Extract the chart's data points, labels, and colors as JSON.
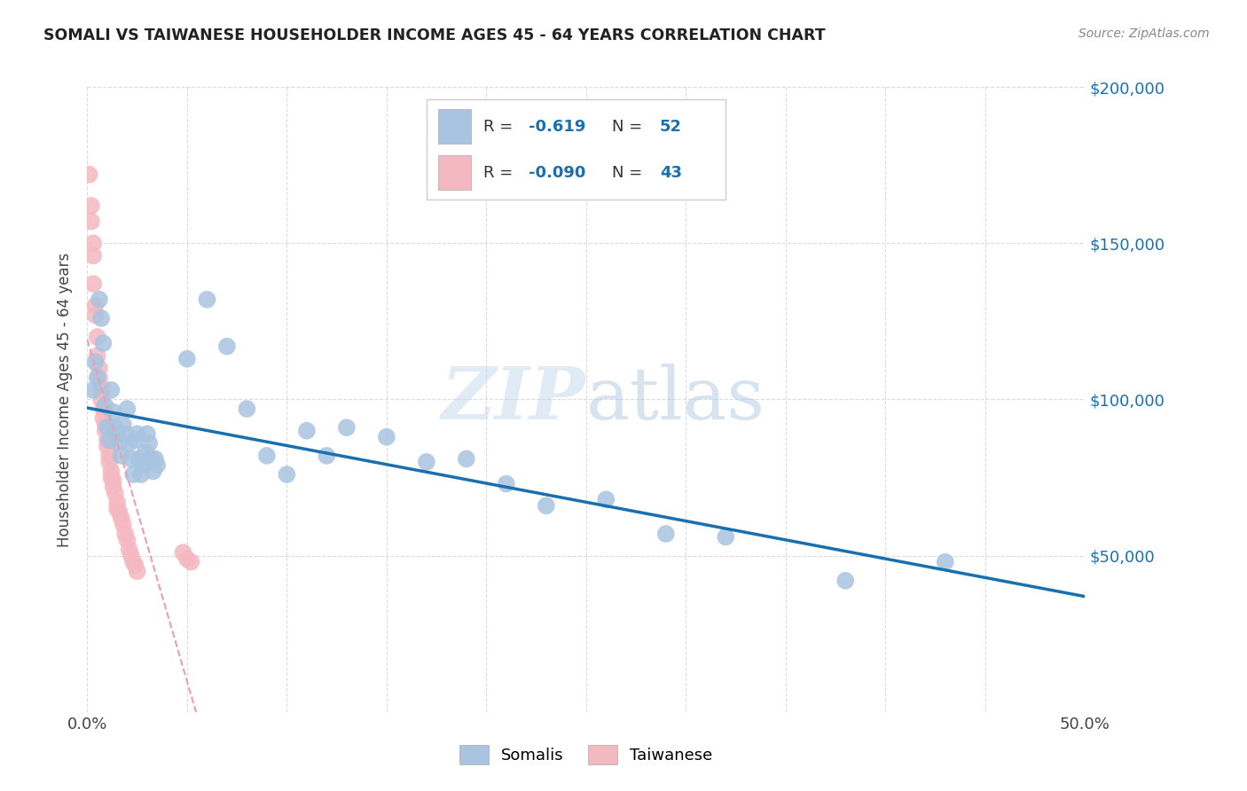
{
  "title": "SOMALI VS TAIWANESE HOUSEHOLDER INCOME AGES 45 - 64 YEARS CORRELATION CHART",
  "source": "Source: ZipAtlas.com",
  "ylabel": "Householder Income Ages 45 - 64 years",
  "watermark": "ZIPatlas",
  "somali_r": -0.619,
  "somali_n": 52,
  "taiwanese_r": -0.09,
  "taiwanese_n": 43,
  "xlim": [
    0.0,
    0.5
  ],
  "ylim": [
    0,
    200000
  ],
  "somali_color": "#a8c4e0",
  "taiwanese_color": "#f4b8c1",
  "somali_line_color": "#1a6faf",
  "taiwanese_line_color": "#e8a0b0",
  "background_color": "#ffffff",
  "grid_color": "#cccccc",
  "somali_x": [
    0.003,
    0.004,
    0.005,
    0.006,
    0.007,
    0.008,
    0.009,
    0.01,
    0.011,
    0.012,
    0.013,
    0.014,
    0.015,
    0.016,
    0.017,
    0.018,
    0.019,
    0.02,
    0.021,
    0.022,
    0.023,
    0.024,
    0.025,
    0.026,
    0.027,
    0.028,
    0.029,
    0.03,
    0.031,
    0.032,
    0.033,
    0.034,
    0.035,
    0.05,
    0.06,
    0.07,
    0.08,
    0.09,
    0.1,
    0.11,
    0.12,
    0.13,
    0.15,
    0.17,
    0.19,
    0.21,
    0.23,
    0.26,
    0.29,
    0.32,
    0.38,
    0.43
  ],
  "somali_y": [
    103000,
    112000,
    107000,
    132000,
    126000,
    118000,
    98000,
    91000,
    87000,
    103000,
    96000,
    91000,
    89000,
    86000,
    82000,
    92000,
    89000,
    97000,
    86000,
    81000,
    76000,
    87000,
    89000,
    81000,
    76000,
    79000,
    83000,
    89000,
    86000,
    81000,
    77000,
    81000,
    79000,
    113000,
    132000,
    117000,
    97000,
    82000,
    76000,
    90000,
    82000,
    91000,
    88000,
    80000,
    81000,
    73000,
    66000,
    68000,
    57000,
    56000,
    42000,
    48000
  ],
  "taiwanese_x": [
    0.001,
    0.002,
    0.002,
    0.003,
    0.003,
    0.003,
    0.004,
    0.004,
    0.005,
    0.005,
    0.006,
    0.006,
    0.007,
    0.007,
    0.007,
    0.008,
    0.008,
    0.009,
    0.009,
    0.01,
    0.01,
    0.011,
    0.011,
    0.012,
    0.012,
    0.013,
    0.013,
    0.014,
    0.015,
    0.015,
    0.016,
    0.017,
    0.018,
    0.019,
    0.02,
    0.021,
    0.022,
    0.023,
    0.024,
    0.025,
    0.048,
    0.05,
    0.052
  ],
  "taiwanese_y": [
    172000,
    162000,
    157000,
    150000,
    146000,
    137000,
    130000,
    127000,
    120000,
    114000,
    110000,
    107000,
    104000,
    102000,
    100000,
    97000,
    94000,
    92000,
    90000,
    87000,
    85000,
    82000,
    80000,
    77000,
    75000,
    74000,
    72000,
    70000,
    67000,
    65000,
    64000,
    62000,
    60000,
    57000,
    55000,
    52000,
    50000,
    48000,
    47000,
    45000,
    51000,
    49000,
    48000
  ]
}
